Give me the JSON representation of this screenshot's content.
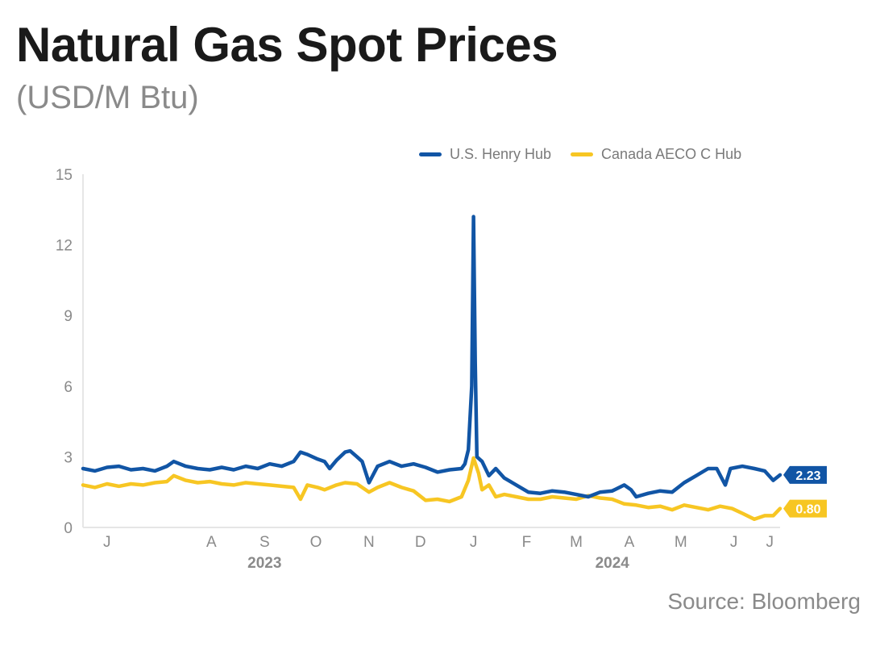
{
  "chart_data": {
    "type": "line",
    "title": "Natural Gas Spot Prices",
    "subtitle": "(USD/M Btu)",
    "ylim": [
      0,
      15
    ],
    "y_ticks": [
      "0",
      "3",
      "6",
      "9",
      "12",
      "15"
    ],
    "x_range": [
      "2023-06-01",
      "2024-07-12"
    ],
    "month_labels": [
      {
        "label": "J",
        "date": "2023-06-15"
      },
      {
        "label": "A",
        "date": "2023-08-15"
      },
      {
        "label": "S",
        "date": "2023-09-15"
      },
      {
        "label": "O",
        "date": "2023-10-15"
      },
      {
        "label": "N",
        "date": "2023-11-15"
      },
      {
        "label": "D",
        "date": "2023-12-15"
      },
      {
        "label": "J",
        "date": "2024-01-15"
      },
      {
        "label": "F",
        "date": "2024-02-15"
      },
      {
        "label": "M",
        "date": "2024-03-15"
      },
      {
        "label": "A",
        "date": "2024-04-15"
      },
      {
        "label": "M",
        "date": "2024-05-15"
      },
      {
        "label": "J",
        "date": "2024-06-15"
      },
      {
        "label": "J",
        "date": "2024-07-06"
      }
    ],
    "year_labels": [
      {
        "label": "2023",
        "date": "2023-09-15"
      },
      {
        "label": "2024",
        "date": "2024-04-05"
      }
    ],
    "grid": false,
    "legend_position": "top-right",
    "series": [
      {
        "name": "U.S. Henry Hub",
        "color": "#1155a5",
        "end_label": "2.23",
        "points": [
          [
            "2023-06-01",
            2.5
          ],
          [
            "2023-06-08",
            2.4
          ],
          [
            "2023-06-15",
            2.55
          ],
          [
            "2023-06-22",
            2.6
          ],
          [
            "2023-06-29",
            2.45
          ],
          [
            "2023-07-06",
            2.5
          ],
          [
            "2023-07-13",
            2.4
          ],
          [
            "2023-07-20",
            2.6
          ],
          [
            "2023-07-24",
            2.8
          ],
          [
            "2023-07-31",
            2.6
          ],
          [
            "2023-08-07",
            2.5
          ],
          [
            "2023-08-14",
            2.45
          ],
          [
            "2023-08-21",
            2.55
          ],
          [
            "2023-08-28",
            2.45
          ],
          [
            "2023-09-04",
            2.6
          ],
          [
            "2023-09-11",
            2.5
          ],
          [
            "2023-09-18",
            2.7
          ],
          [
            "2023-09-25",
            2.6
          ],
          [
            "2023-10-02",
            2.8
          ],
          [
            "2023-10-06",
            3.2
          ],
          [
            "2023-10-10",
            3.1
          ],
          [
            "2023-10-16",
            2.9
          ],
          [
            "2023-10-20",
            2.8
          ],
          [
            "2023-10-23",
            2.5
          ],
          [
            "2023-10-27",
            2.85
          ],
          [
            "2023-11-01",
            3.2
          ],
          [
            "2023-11-04",
            3.25
          ],
          [
            "2023-11-08",
            3.0
          ],
          [
            "2023-11-11",
            2.8
          ],
          [
            "2023-11-15",
            1.9
          ],
          [
            "2023-11-20",
            2.6
          ],
          [
            "2023-11-27",
            2.8
          ],
          [
            "2023-12-04",
            2.6
          ],
          [
            "2023-12-11",
            2.7
          ],
          [
            "2023-12-18",
            2.55
          ],
          [
            "2023-12-25",
            2.35
          ],
          [
            "2024-01-01",
            2.45
          ],
          [
            "2024-01-08",
            2.5
          ],
          [
            "2024-01-10",
            2.7
          ],
          [
            "2024-01-12",
            3.3
          ],
          [
            "2024-01-14",
            6.0
          ],
          [
            "2024-01-15",
            13.2
          ],
          [
            "2024-01-16",
            7.0
          ],
          [
            "2024-01-17",
            3.0
          ],
          [
            "2024-01-20",
            2.8
          ],
          [
            "2024-01-24",
            2.2
          ],
          [
            "2024-01-28",
            2.5
          ],
          [
            "2024-02-02",
            2.1
          ],
          [
            "2024-02-09",
            1.8
          ],
          [
            "2024-02-16",
            1.5
          ],
          [
            "2024-02-23",
            1.45
          ],
          [
            "2024-03-01",
            1.55
          ],
          [
            "2024-03-08",
            1.5
          ],
          [
            "2024-03-15",
            1.4
          ],
          [
            "2024-03-22",
            1.3
          ],
          [
            "2024-03-29",
            1.5
          ],
          [
            "2024-04-05",
            1.55
          ],
          [
            "2024-04-12",
            1.8
          ],
          [
            "2024-04-16",
            1.6
          ],
          [
            "2024-04-19",
            1.3
          ],
          [
            "2024-04-26",
            1.45
          ],
          [
            "2024-05-03",
            1.55
          ],
          [
            "2024-05-10",
            1.5
          ],
          [
            "2024-05-17",
            1.9
          ],
          [
            "2024-05-24",
            2.2
          ],
          [
            "2024-05-31",
            2.5
          ],
          [
            "2024-06-05",
            2.5
          ],
          [
            "2024-06-10",
            1.8
          ],
          [
            "2024-06-13",
            2.5
          ],
          [
            "2024-06-20",
            2.6
          ],
          [
            "2024-06-27",
            2.5
          ],
          [
            "2024-07-03",
            2.4
          ],
          [
            "2024-07-08",
            2.0
          ],
          [
            "2024-07-12",
            2.23
          ]
        ]
      },
      {
        "name": "Canada AECO C Hub",
        "color": "#f7c623",
        "end_label": "0.80",
        "points": [
          [
            "2023-06-01",
            1.8
          ],
          [
            "2023-06-08",
            1.7
          ],
          [
            "2023-06-15",
            1.85
          ],
          [
            "2023-06-22",
            1.75
          ],
          [
            "2023-06-29",
            1.85
          ],
          [
            "2023-07-06",
            1.8
          ],
          [
            "2023-07-13",
            1.9
          ],
          [
            "2023-07-20",
            1.95
          ],
          [
            "2023-07-24",
            2.2
          ],
          [
            "2023-07-31",
            2.0
          ],
          [
            "2023-08-07",
            1.9
          ],
          [
            "2023-08-14",
            1.95
          ],
          [
            "2023-08-21",
            1.85
          ],
          [
            "2023-08-28",
            1.8
          ],
          [
            "2023-09-04",
            1.9
          ],
          [
            "2023-09-11",
            1.85
          ],
          [
            "2023-09-18",
            1.8
          ],
          [
            "2023-09-25",
            1.75
          ],
          [
            "2023-10-02",
            1.7
          ],
          [
            "2023-10-06",
            1.2
          ],
          [
            "2023-10-10",
            1.8
          ],
          [
            "2023-10-16",
            1.7
          ],
          [
            "2023-10-20",
            1.6
          ],
          [
            "2023-10-27",
            1.8
          ],
          [
            "2023-11-01",
            1.9
          ],
          [
            "2023-11-08",
            1.85
          ],
          [
            "2023-11-15",
            1.5
          ],
          [
            "2023-11-20",
            1.7
          ],
          [
            "2023-11-27",
            1.9
          ],
          [
            "2023-12-04",
            1.7
          ],
          [
            "2023-12-11",
            1.55
          ],
          [
            "2023-12-18",
            1.15
          ],
          [
            "2023-12-25",
            1.2
          ],
          [
            "2024-01-01",
            1.1
          ],
          [
            "2024-01-08",
            1.3
          ],
          [
            "2024-01-12",
            2.0
          ],
          [
            "2024-01-15",
            2.95
          ],
          [
            "2024-01-18",
            2.3
          ],
          [
            "2024-01-20",
            1.6
          ],
          [
            "2024-01-24",
            1.8
          ],
          [
            "2024-01-28",
            1.3
          ],
          [
            "2024-02-02",
            1.4
          ],
          [
            "2024-02-09",
            1.3
          ],
          [
            "2024-02-16",
            1.2
          ],
          [
            "2024-02-23",
            1.2
          ],
          [
            "2024-03-01",
            1.3
          ],
          [
            "2024-03-08",
            1.25
          ],
          [
            "2024-03-15",
            1.2
          ],
          [
            "2024-03-22",
            1.35
          ],
          [
            "2024-03-29",
            1.25
          ],
          [
            "2024-04-05",
            1.2
          ],
          [
            "2024-04-12",
            1.0
          ],
          [
            "2024-04-19",
            0.95
          ],
          [
            "2024-04-26",
            0.85
          ],
          [
            "2024-05-03",
            0.9
          ],
          [
            "2024-05-10",
            0.75
          ],
          [
            "2024-05-17",
            0.95
          ],
          [
            "2024-05-24",
            0.85
          ],
          [
            "2024-05-31",
            0.75
          ],
          [
            "2024-06-07",
            0.9
          ],
          [
            "2024-06-14",
            0.8
          ],
          [
            "2024-06-20",
            0.6
          ],
          [
            "2024-06-27",
            0.35
          ],
          [
            "2024-07-03",
            0.5
          ],
          [
            "2024-07-08",
            0.5
          ],
          [
            "2024-07-12",
            0.8
          ]
        ]
      }
    ]
  },
  "legend": {
    "items": [
      {
        "label": "U.S. Henry Hub",
        "color": "#1155a5"
      },
      {
        "label": "Canada AECO C Hub",
        "color": "#f7c623"
      }
    ]
  },
  "source": "Source: Bloomberg"
}
